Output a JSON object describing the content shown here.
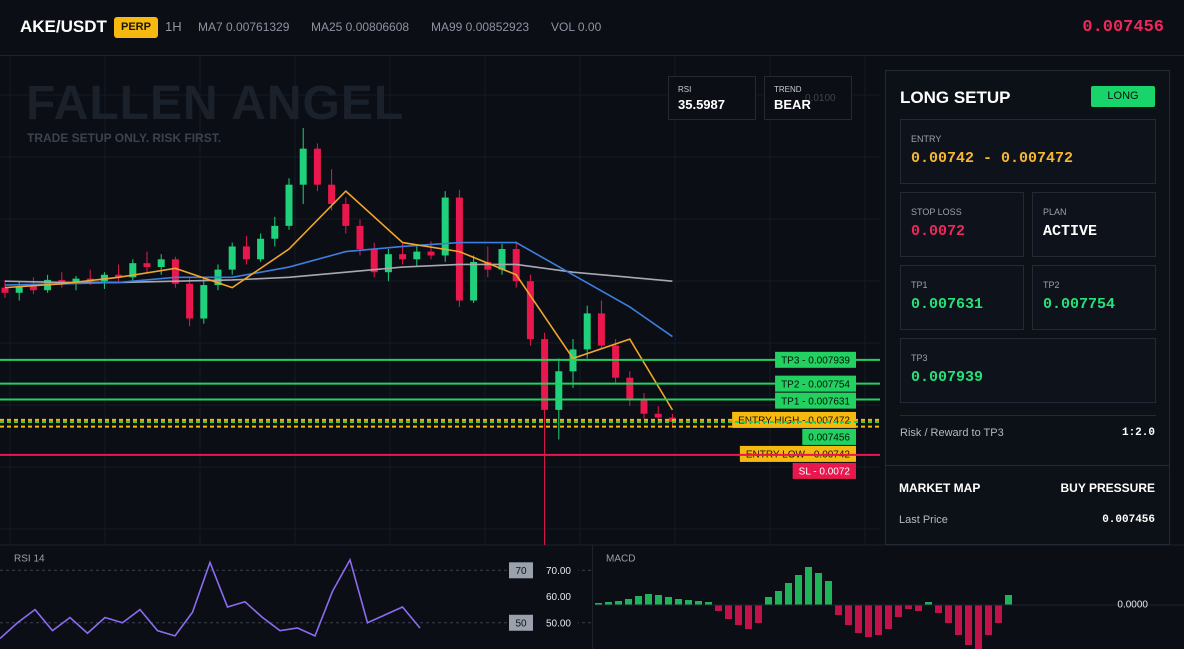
{
  "header": {
    "symbol": "AKE/USDT",
    "badge": "PERP",
    "interval": "1H",
    "ma7": "MA7 0.00761329",
    "ma25": "MA25 0.00806608",
    "ma99": "MA99 0.00852923",
    "volume": "VOL 0.00",
    "price": "0.007456"
  },
  "overlay": {
    "watermark": "FALLEN ANGEL",
    "tagline": "TRADE SETUP ONLY. RISK FIRST.",
    "rsi_label": "RSI",
    "rsi_value": "35.5987",
    "trend_label": "TREND",
    "trend_value": "BEAR",
    "axis_hint": "0.0100"
  },
  "price_chart": {
    "ylim": [
      0.0065,
      0.0103
    ],
    "up_color": "#1fd17a",
    "down_color": "#e8174d",
    "candles": [
      [
        0.0085,
        0.00856,
        0.00842,
        0.00846
      ],
      [
        0.00846,
        0.00855,
        0.0084,
        0.00851
      ],
      [
        0.00851,
        0.00858,
        0.00845,
        0.00848
      ],
      [
        0.00848,
        0.0086,
        0.00846,
        0.00856
      ],
      [
        0.00856,
        0.00862,
        0.0085,
        0.00853
      ],
      [
        0.00853,
        0.00859,
        0.00848,
        0.00857
      ],
      [
        0.00857,
        0.00864,
        0.00852,
        0.00855
      ],
      [
        0.00855,
        0.00862,
        0.00849,
        0.0086
      ],
      [
        0.0086,
        0.00868,
        0.00855,
        0.00858
      ],
      [
        0.00858,
        0.00872,
        0.00854,
        0.00869
      ],
      [
        0.00869,
        0.00878,
        0.00862,
        0.00866
      ],
      [
        0.00866,
        0.00876,
        0.0086,
        0.00872
      ],
      [
        0.00872,
        0.00874,
        0.0085,
        0.00853
      ],
      [
        0.00853,
        0.00858,
        0.0082,
        0.00826
      ],
      [
        0.00826,
        0.00857,
        0.00822,
        0.00852
      ],
      [
        0.00852,
        0.00868,
        0.00848,
        0.00864
      ],
      [
        0.00864,
        0.00885,
        0.0086,
        0.00882
      ],
      [
        0.00882,
        0.0089,
        0.00868,
        0.00872
      ],
      [
        0.00872,
        0.00892,
        0.0087,
        0.00888
      ],
      [
        0.00888,
        0.00905,
        0.00882,
        0.00898
      ],
      [
        0.00898,
        0.00935,
        0.00895,
        0.0093
      ],
      [
        0.0093,
        0.00974,
        0.00915,
        0.00958
      ],
      [
        0.00958,
        0.00962,
        0.00925,
        0.0093
      ],
      [
        0.0093,
        0.00942,
        0.0091,
        0.00915
      ],
      [
        0.00915,
        0.0092,
        0.00892,
        0.00898
      ],
      [
        0.00898,
        0.00903,
        0.00875,
        0.0088
      ],
      [
        0.0088,
        0.00885,
        0.00858,
        0.00862
      ],
      [
        0.00862,
        0.0088,
        0.00855,
        0.00876
      ],
      [
        0.00876,
        0.00884,
        0.00868,
        0.00872
      ],
      [
        0.00872,
        0.00882,
        0.00866,
        0.00878
      ],
      [
        0.00878,
        0.00886,
        0.00872,
        0.00875
      ],
      [
        0.00875,
        0.00925,
        0.0087,
        0.0092
      ],
      [
        0.0092,
        0.00926,
        0.00835,
        0.0084
      ],
      [
        0.0084,
        0.00875,
        0.00838,
        0.0087
      ],
      [
        0.0087,
        0.00882,
        0.00858,
        0.00864
      ],
      [
        0.00864,
        0.00884,
        0.0086,
        0.0088
      ],
      [
        0.0088,
        0.00886,
        0.0085,
        0.00855
      ],
      [
        0.00855,
        0.0086,
        0.00805,
        0.0081
      ],
      [
        0.0081,
        0.00815,
        0.0065,
        0.00755
      ],
      [
        0.00755,
        0.00795,
        0.00732,
        0.00785
      ],
      [
        0.00785,
        0.0081,
        0.00772,
        0.00802
      ],
      [
        0.00802,
        0.00836,
        0.00795,
        0.0083
      ],
      [
        0.0083,
        0.0084,
        0.00802,
        0.00805
      ],
      [
        0.00805,
        0.0081,
        0.00775,
        0.0078
      ],
      [
        0.0078,
        0.00785,
        0.00758,
        0.00763
      ],
      [
        0.00763,
        0.00768,
        0.00748,
        0.00752
      ],
      [
        0.00752,
        0.00758,
        0.00744,
        0.00749
      ],
      [
        0.00749,
        0.00752,
        0.00742,
        0.007456
      ]
    ],
    "ma_x": [
      0,
      4,
      8,
      12,
      16,
      20,
      24,
      28,
      32,
      36,
      40,
      44,
      47
    ],
    "ma_lines": [
      {
        "color": "#a7a9b0",
        "values": [
          0.00855,
          0.00854,
          0.00854,
          0.00855,
          0.00856,
          0.00858,
          0.00862,
          0.00866,
          0.00868,
          0.00868,
          0.00862,
          0.00858,
          0.00855
        ]
      },
      {
        "color": "#3d7fe0",
        "values": [
          0.00852,
          0.00853,
          0.00854,
          0.00858,
          0.00858,
          0.00866,
          0.00878,
          0.00882,
          0.00885,
          0.00885,
          0.0086,
          0.00835,
          0.00812
        ]
      },
      {
        "color": "#f0a62a",
        "values": [
          0.0085,
          0.00853,
          0.00858,
          0.00865,
          0.0085,
          0.0088,
          0.00925,
          0.00885,
          0.00878,
          0.0086,
          0.00795,
          0.0081,
          0.00755
        ]
      }
    ],
    "levels": [
      {
        "value": 0.007939,
        "label": "TP3 - 0.007939",
        "color": "#22d160",
        "text_color": "#06130b",
        "dashed": false
      },
      {
        "value": 0.007754,
        "label": "TP2 - 0.007754",
        "color": "#22d160",
        "text_color": "#06130b",
        "dashed": false
      },
      {
        "value": 0.007631,
        "label": "TP1 - 0.007631",
        "color": "#22d160",
        "text_color": "#06130b",
        "dashed": false
      },
      {
        "value": 0.007472,
        "label": "ENTRY HIGH - 0.007472",
        "color": "#f5b90f",
        "text_color": "#1a1405",
        "dashed": true
      },
      {
        "value": 0.007456,
        "label": "0.007456",
        "color": "#22d160",
        "text_color": "#06130b",
        "dashed": true
      },
      {
        "value": 0.00742,
        "label": "ENTRY LOW - 0.00742",
        "color": "#f5b90f",
        "text_color": "#1a1405",
        "dashed": true
      },
      {
        "value": 0.0072,
        "label": "SL - 0.0072",
        "color": "#e8174d",
        "text_color": "#ffffff",
        "dashed": false
      }
    ]
  },
  "rsi_panel": {
    "title": "RSI 14",
    "color": "#8b6cf0",
    "ylim": [
      40,
      78.5
    ],
    "yticks": [
      {
        "value": 70,
        "label": "70.00"
      },
      {
        "value": 60,
        "label": "60.00"
      },
      {
        "value": 50,
        "label": "50.00"
      }
    ],
    "bands": [
      {
        "value": 70,
        "label": "70"
      },
      {
        "value": 50,
        "label": "50"
      }
    ],
    "values": [
      44,
      50,
      55,
      47,
      52,
      46,
      52,
      50,
      55,
      47,
      45,
      54,
      73,
      56,
      58,
      52,
      47,
      48,
      45,
      62,
      74,
      50,
      53,
      56,
      48
    ]
  },
  "macd_panel": {
    "title": "MACD",
    "ylim": [
      -4.4e-05,
      5.7e-05
    ],
    "up_color": "#1fb35a",
    "down_color": "#c2124a",
    "yticks": [
      {
        "value": 0,
        "label": "0.0000"
      }
    ],
    "values": [
      2e-06,
      3e-06,
      4e-06,
      6e-06,
      9e-06,
      1.1e-05,
      1e-05,
      8e-06,
      6e-06,
      5e-06,
      4e-06,
      3e-06,
      -6e-06,
      -1.4e-05,
      -2e-05,
      -2.4e-05,
      -1.8e-05,
      8e-06,
      1.4e-05,
      2.2e-05,
      3e-05,
      3.8e-05,
      3.2e-05,
      2.4e-05,
      -1e-05,
      -2e-05,
      -2.8e-05,
      -3.2e-05,
      -3e-05,
      -2.4e-05,
      -1.2e-05,
      -4e-06,
      -6e-06,
      3e-06,
      -8e-06,
      -1.8e-05,
      -3e-05,
      -4e-05,
      -4.4e-05,
      -3e-05,
      -1.8e-05,
      1e-05
    ]
  },
  "setup_panel": {
    "title": "LONG SETUP",
    "badge": "LONG",
    "entry_label": "ENTRY",
    "entry_value": "0.00742 - 0.007472",
    "stop_label": "STOP LOSS",
    "stop_value": "0.0072",
    "plan_label": "PLAN",
    "plan_value": "ACTIVE",
    "tp1_label": "TP1",
    "tp1_value": "0.007631",
    "tp2_label": "TP2",
    "tp2_value": "0.007754",
    "tp3_label": "TP3",
    "tp3_value": "0.007939",
    "rr_label": "Risk / Reward to TP3",
    "rr_value": "1:2.0"
  },
  "market_map": {
    "title": "MARKET MAP",
    "status": "BUY PRESSURE",
    "last_label": "Last Price",
    "last_value": "0.007456"
  }
}
